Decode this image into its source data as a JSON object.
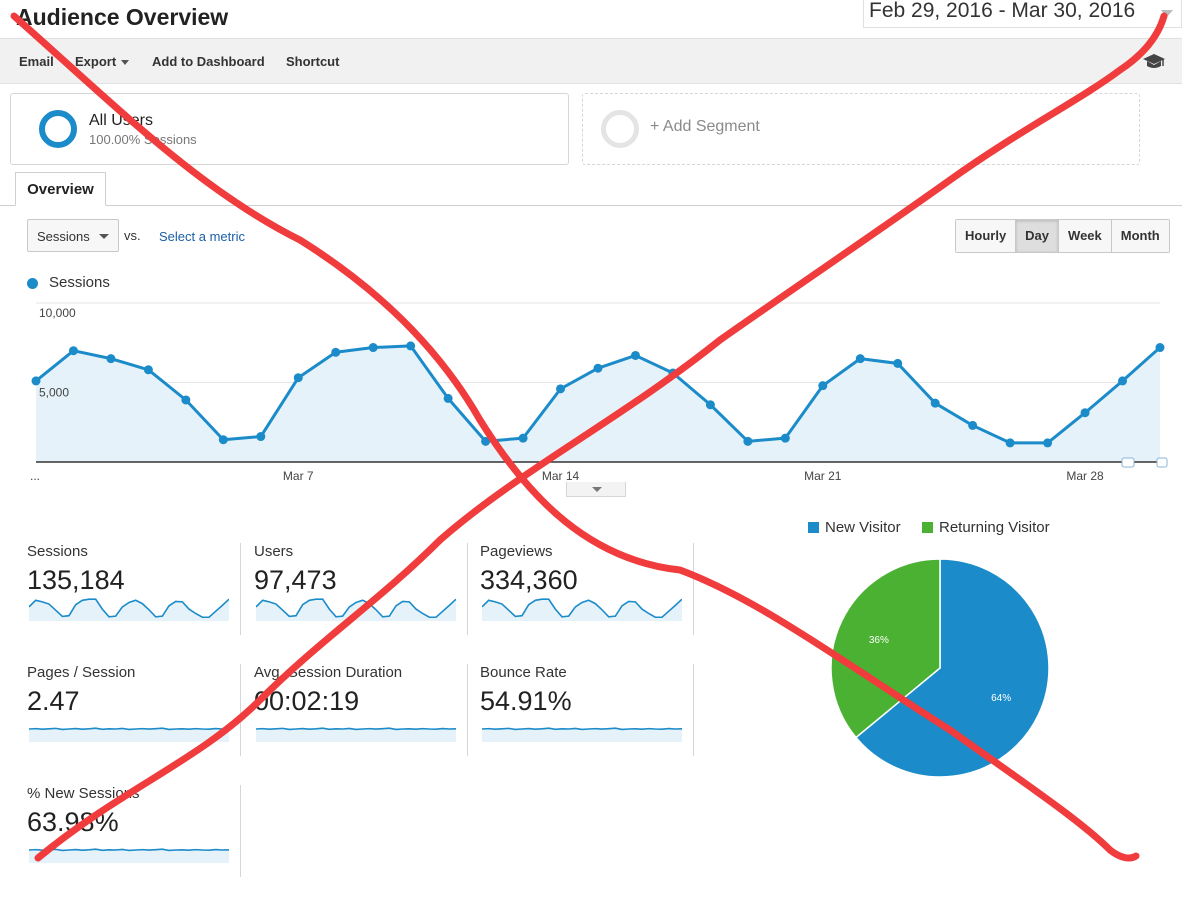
{
  "header": {
    "title": "Audience Overview",
    "date_range": "Feb 29, 2016 - Mar 30, 2016"
  },
  "toolbar": {
    "email": "Email",
    "export": "Export",
    "add_to_dashboard": "Add to Dashboard",
    "shortcut": "Shortcut",
    "right_icon": "graduation-cap-icon"
  },
  "segments": {
    "active_name": "All Users",
    "active_sub": "100.00% Sessions",
    "add_label": "+ Add Segment"
  },
  "tabs": [
    "Overview"
  ],
  "controls": {
    "metric_select": "Sessions",
    "vs_label": "vs.",
    "select_metric": "Select a metric",
    "periods": [
      "Hourly",
      "Day",
      "Week",
      "Month"
    ],
    "active_period": "Day"
  },
  "colors": {
    "sessions_line": "#1b8bc9",
    "new_visitor": "#1b8bc9",
    "returning_visitor": "#4bb133",
    "annotation_strike": "#f03c3c"
  },
  "chart_data": [
    {
      "type": "line",
      "series": [
        {
          "name": "Sessions",
          "values": [
            5100,
            7000,
            6500,
            5800,
            3900,
            1400,
            1600,
            5300,
            6900,
            7200,
            7300,
            4000,
            1300,
            1500,
            4600,
            5900,
            6700,
            5600,
            3600,
            1300,
            1500,
            4800,
            6500,
            6200,
            3700,
            2300,
            1200,
            1200,
            3100,
            5100,
            7200
          ]
        }
      ],
      "x_start": "Feb 29",
      "x_end": "Mar 30",
      "x_tick_labels": [
        "...",
        "Mar 7",
        "Mar 14",
        "Mar 21",
        "Mar 28"
      ],
      "y_tick_labels": [
        "10,000",
        "5,000"
      ],
      "ylim": [
        0,
        10000
      ],
      "legend": [
        "Sessions"
      ],
      "grid": true,
      "legend_position": "top-left"
    },
    {
      "type": "pie",
      "categories": [
        "New Visitor",
        "Returning Visitor"
      ],
      "values": [
        64,
        36
      ],
      "data_labels": [
        "64%",
        "36%"
      ],
      "legend_position": "top"
    }
  ],
  "metrics": [
    {
      "label": "Sessions",
      "value": "135,184",
      "trend": "weekly"
    },
    {
      "label": "Users",
      "value": "97,473",
      "trend": "weekly"
    },
    {
      "label": "Pageviews",
      "value": "334,360",
      "trend": "weekly"
    },
    {
      "label": "Pages / Session",
      "value": "2.47",
      "trend": "flat"
    },
    {
      "label": "Avg. Session Duration",
      "value": "00:02:19",
      "trend": "flat"
    },
    {
      "label": "Bounce Rate",
      "value": "54.91%",
      "trend": "flat"
    },
    {
      "label": "% New Sessions",
      "value": "63.98%",
      "trend": "flat"
    }
  ]
}
